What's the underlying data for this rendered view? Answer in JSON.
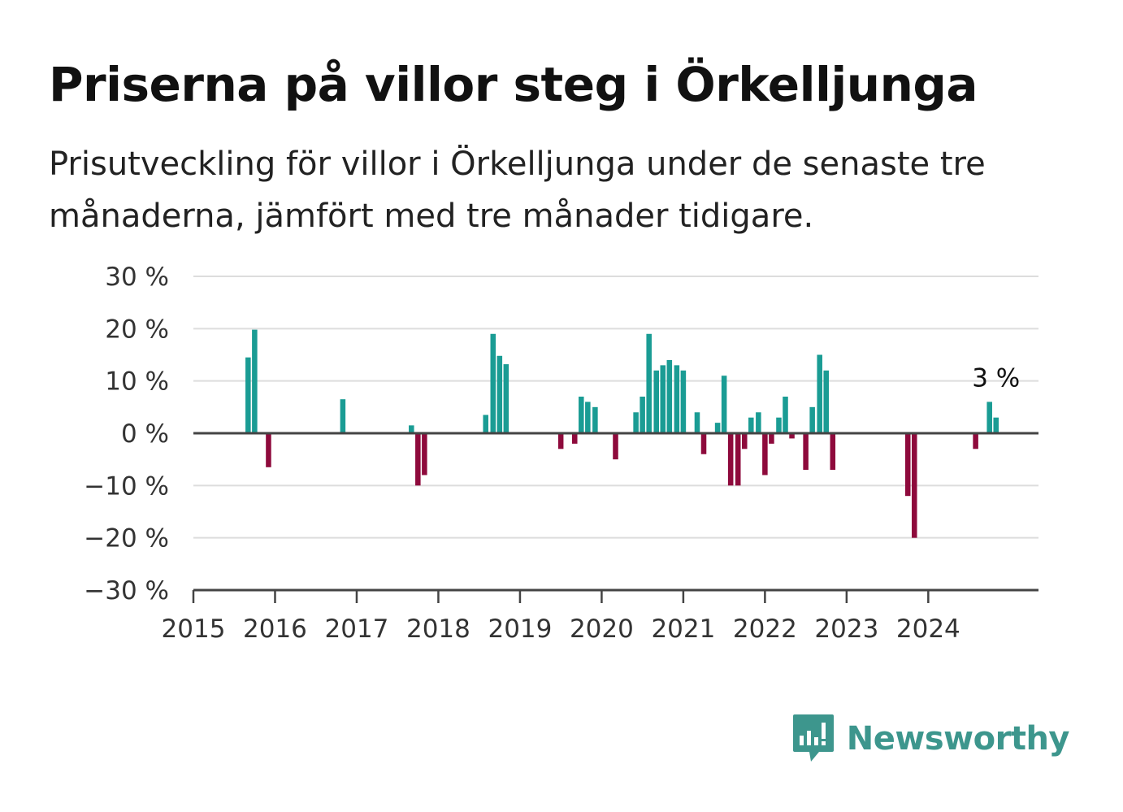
{
  "header": {
    "title": "Priserna på villor steg i Örkelljunga",
    "subtitle": "Prisutveckling för villor i Örkelljunga under de senaste tre månaderna, jämfört med tre månader tidigare."
  },
  "brand": {
    "name": "Newsworthy",
    "icon": "newsworthy-logo-icon",
    "color": "#3d968d"
  },
  "chart_data": {
    "type": "bar",
    "title": "Priserna på villor steg i Örkelljunga",
    "subtitle": "Prisutveckling för villor i Örkelljunga under de senaste tre månaderna, jämfört med tre månader tidigare.",
    "xlabel": "",
    "ylabel": "",
    "x_unit": "year (decimal)",
    "xlim": [
      2015,
      2025.35
    ],
    "ylim": [
      -30,
      30
    ],
    "y_ticks": [
      30,
      20,
      10,
      0,
      -10,
      -20,
      -30
    ],
    "y_tick_labels": [
      "30 %",
      "20 %",
      "10 %",
      "0 %",
      "−10 %",
      "−20 %",
      "−30 %"
    ],
    "x_ticks": [
      2015,
      2016,
      2017,
      2018,
      2019,
      2020,
      2021,
      2022,
      2023,
      2024
    ],
    "x_tick_labels": [
      "2015",
      "2016",
      "2017",
      "2018",
      "2019",
      "2020",
      "2021",
      "2022",
      "2023",
      "2024"
    ],
    "grid": true,
    "legend": "none",
    "colors": {
      "positive": "#1a9c94",
      "negative": "#8e0a3c",
      "grid": "#dddddd",
      "axis": "#444444"
    },
    "bar_width_years": 0.065,
    "points": [
      {
        "x": 2015.67,
        "y": 14.5
      },
      {
        "x": 2015.75,
        "y": 19.8
      },
      {
        "x": 2015.92,
        "y": -6.5
      },
      {
        "x": 2016.83,
        "y": 6.5
      },
      {
        "x": 2017.67,
        "y": 1.5
      },
      {
        "x": 2017.75,
        "y": -10
      },
      {
        "x": 2017.83,
        "y": -8
      },
      {
        "x": 2018.58,
        "y": 3.5
      },
      {
        "x": 2018.67,
        "y": 19
      },
      {
        "x": 2018.75,
        "y": 14.8
      },
      {
        "x": 2018.83,
        "y": 13.2
      },
      {
        "x": 2019.5,
        "y": -3
      },
      {
        "x": 2019.67,
        "y": -2
      },
      {
        "x": 2019.75,
        "y": 7
      },
      {
        "x": 2019.83,
        "y": 6
      },
      {
        "x": 2019.92,
        "y": 5
      },
      {
        "x": 2020.17,
        "y": -5
      },
      {
        "x": 2020.42,
        "y": 4
      },
      {
        "x": 2020.5,
        "y": 7
      },
      {
        "x": 2020.58,
        "y": 19
      },
      {
        "x": 2020.67,
        "y": 12
      },
      {
        "x": 2020.75,
        "y": 13
      },
      {
        "x": 2020.83,
        "y": 14
      },
      {
        "x": 2020.92,
        "y": 13
      },
      {
        "x": 2021.0,
        "y": 12
      },
      {
        "x": 2021.17,
        "y": 4
      },
      {
        "x": 2021.25,
        "y": -4
      },
      {
        "x": 2021.42,
        "y": 2
      },
      {
        "x": 2021.5,
        "y": 11
      },
      {
        "x": 2021.58,
        "y": -10
      },
      {
        "x": 2021.67,
        "y": -10
      },
      {
        "x": 2021.75,
        "y": -3
      },
      {
        "x": 2021.83,
        "y": 3
      },
      {
        "x": 2021.92,
        "y": 4
      },
      {
        "x": 2022.0,
        "y": -8
      },
      {
        "x": 2022.08,
        "y": -2
      },
      {
        "x": 2022.17,
        "y": 3
      },
      {
        "x": 2022.25,
        "y": 7
      },
      {
        "x": 2022.33,
        "y": -1
      },
      {
        "x": 2022.5,
        "y": -7
      },
      {
        "x": 2022.58,
        "y": 5
      },
      {
        "x": 2022.67,
        "y": 15
      },
      {
        "x": 2022.75,
        "y": 12
      },
      {
        "x": 2022.83,
        "y": -7
      },
      {
        "x": 2023.75,
        "y": -12
      },
      {
        "x": 2023.83,
        "y": -20
      },
      {
        "x": 2024.58,
        "y": -3
      },
      {
        "x": 2024.75,
        "y": 6
      },
      {
        "x": 2024.83,
        "y": 3
      }
    ],
    "annotations": [
      {
        "x": 2024.83,
        "y": 3,
        "text": "3 %"
      }
    ]
  }
}
